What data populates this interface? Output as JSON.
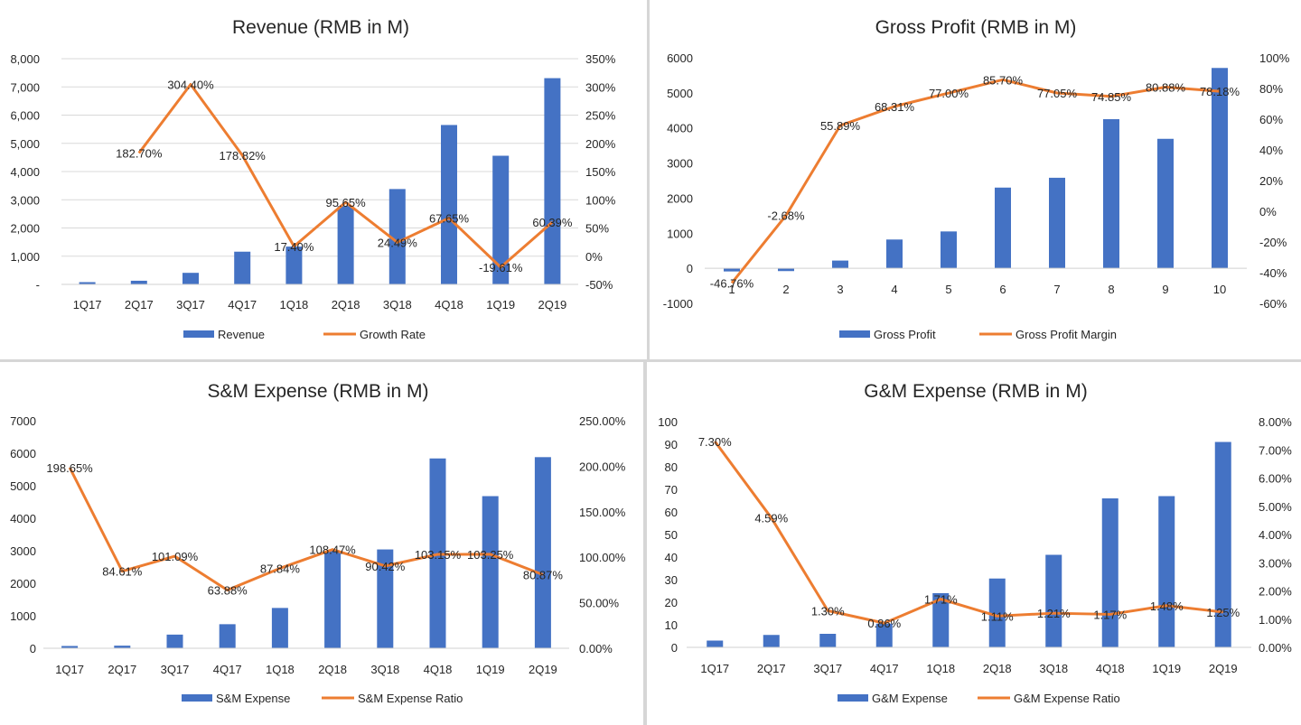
{
  "chart_data": [
    {
      "type": "bar",
      "title": "Revenue (RMB in M)",
      "categories": [
        "1Q17",
        "2Q17",
        "3Q17",
        "4Q17",
        "1Q18",
        "2Q18",
        "3Q18",
        "4Q18",
        "1Q19",
        "2Q19"
      ],
      "series": [
        {
          "name": "Revenue",
          "kind": "bar",
          "axis": "left",
          "values": [
            80,
            130,
            410,
            1160,
            1340,
            2780,
            3380,
            5650,
            4560,
            7310
          ]
        },
        {
          "name": "Growth Rate",
          "kind": "line",
          "axis": "right",
          "values": [
            null,
            182.7,
            304.4,
            178.82,
            17.4,
            95.65,
            24.49,
            67.65,
            -19.61,
            60.39
          ]
        }
      ],
      "labels": [
        null,
        "182.70%",
        "304.40%",
        "178.82%",
        "17.40%",
        "95.65%",
        "24.49%",
        "67.65%",
        "-19.61%",
        "60.39%"
      ],
      "ylim": [
        0,
        8000
      ],
      "yticks": [
        "-",
        "1,000",
        "2,000",
        "3,000",
        "4,000",
        "5,000",
        "6,000",
        "7,000",
        "8,000"
      ],
      "y2lim": [
        -50,
        350
      ],
      "y2ticks": [
        "-50%",
        "0%",
        "50%",
        "100%",
        "150%",
        "200%",
        "250%",
        "300%",
        "350%"
      ],
      "legend": [
        "Revenue",
        "Growth Rate"
      ],
      "grid": true,
      "legend_position": "bottom"
    },
    {
      "type": "bar",
      "title": "Gross Profit (RMB in M)",
      "categories": [
        "1",
        "2",
        "3",
        "4",
        "5",
        "6",
        "7",
        "8",
        "9",
        "10"
      ],
      "series": [
        {
          "name": "Gross Profit",
          "kind": "bar",
          "axis": "left",
          "values": [
            -90,
            -80,
            220,
            820,
            1050,
            2300,
            2580,
            4250,
            3690,
            5710
          ]
        },
        {
          "name": "Gross Profit Margin",
          "kind": "line",
          "axis": "right",
          "values": [
            -46.76,
            -2.68,
            55.89,
            68.31,
            77.0,
            85.7,
            77.05,
            74.85,
            80.88,
            78.18
          ]
        }
      ],
      "labels": [
        "-46.76%",
        "-2.68%",
        "55.89%",
        "68.31%",
        "77.00%",
        "85.70%",
        "77.05%",
        "74.85%",
        "80.88%",
        "78.18%"
      ],
      "ylim": [
        -1000,
        6000
      ],
      "yticks": [
        "-1000",
        "0",
        "1000",
        "2000",
        "3000",
        "4000",
        "5000",
        "6000"
      ],
      "y2lim": [
        -60,
        100
      ],
      "y2ticks": [
        "-60%",
        "-40%",
        "-20%",
        "0%",
        "20%",
        "40%",
        "60%",
        "80%",
        "100%"
      ],
      "legend": [
        "Gross Profit",
        "Gross Profit Margin"
      ],
      "grid": false,
      "legend_position": "bottom"
    },
    {
      "type": "bar",
      "title": "S&M Expense (RMB in M)",
      "categories": [
        "1Q17",
        "2Q17",
        "3Q17",
        "4Q17",
        "1Q18",
        "2Q18",
        "3Q18",
        "4Q18",
        "1Q19",
        "2Q19"
      ],
      "series": [
        {
          "name": "S&M Expense",
          "kind": "bar",
          "axis": "left",
          "values": [
            70,
            80,
            420,
            740,
            1240,
            3000,
            3040,
            5840,
            4680,
            5880
          ]
        },
        {
          "name": "S&M Expense Ratio",
          "kind": "line",
          "axis": "right",
          "values": [
            198.65,
            84.61,
            101.09,
            63.88,
            87.84,
            108.47,
            90.42,
            103.15,
            103.25,
            80.87
          ]
        }
      ],
      "labels": [
        "198.65%",
        "84.61%",
        "101.09%",
        "63.88%",
        "87.84%",
        "108.47%",
        "90.42%",
        "103.15%",
        "103.25%",
        "80.87%"
      ],
      "ylim": [
        0,
        7000
      ],
      "yticks": [
        "0",
        "1000",
        "2000",
        "3000",
        "4000",
        "5000",
        "6000",
        "7000"
      ],
      "y2lim": [
        0,
        250
      ],
      "y2ticks": [
        "0.00%",
        "50.00%",
        "100.00%",
        "150.00%",
        "200.00%",
        "250.00%"
      ],
      "legend": [
        "S&M Expense",
        "S&M Expense Ratio"
      ],
      "grid": false,
      "legend_position": "bottom"
    },
    {
      "type": "bar",
      "title": "G&M Expense (RMB in M)",
      "categories": [
        "1Q17",
        "2Q17",
        "3Q17",
        "4Q17",
        "1Q18",
        "2Q18",
        "3Q18",
        "4Q18",
        "1Q19",
        "2Q19"
      ],
      "series": [
        {
          "name": "G&M Expense",
          "kind": "bar",
          "axis": "left",
          "values": [
            3,
            5.5,
            6,
            10.5,
            24,
            30.5,
            41,
            66,
            67,
            91
          ]
        },
        {
          "name": "G&M Expense Ratio",
          "kind": "line",
          "axis": "right",
          "values": [
            7.3,
            4.59,
            1.3,
            0.86,
            1.71,
            1.11,
            1.21,
            1.17,
            1.48,
            1.25
          ]
        }
      ],
      "labels": [
        "7.30%",
        "4.59%",
        "1.30%",
        "0.86%",
        "1.71%",
        "1.11%",
        "1.21%",
        "1.17%",
        "1.48%",
        "1.25%"
      ],
      "ylim": [
        0,
        100
      ],
      "yticks": [
        "0",
        "10",
        "20",
        "30",
        "40",
        "50",
        "60",
        "70",
        "80",
        "90",
        "100"
      ],
      "y2lim": [
        0,
        8
      ],
      "y2ticks": [
        "0.00%",
        "1.00%",
        "2.00%",
        "3.00%",
        "4.00%",
        "5.00%",
        "6.00%",
        "7.00%",
        "8.00%"
      ],
      "legend": [
        "G&M Expense",
        "G&M Expense Ratio"
      ],
      "grid": false,
      "legend_position": "bottom"
    }
  ],
  "colors": {
    "bar": "#4472c4",
    "line": "#ed7d31",
    "grid": "#d9d9d9",
    "axis": "#d0d0d0"
  }
}
